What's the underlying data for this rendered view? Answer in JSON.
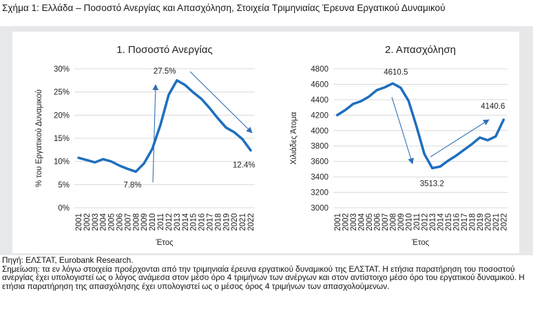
{
  "figure_title": "Σχήμα 1: Ελλάδα – Ποσοστό Ανεργίας και Απασχόληση, Στοιχεία Τριμηνιαίας Έρευνα Εργατικού Δυναμικού",
  "colors": {
    "line": "#1f6fbe",
    "arrow": "#2f6fb5",
    "grid": "#d9d9d9",
    "panel_bg": "#e7e8ea"
  },
  "chart_data": [
    {
      "type": "line",
      "title": "1. Ποσοστό Ανεργίας",
      "xlabel": "Έτος",
      "ylabel": "% του Εργατικού Δυναμικού",
      "x": [
        "2001",
        "2002",
        "2003",
        "2004",
        "2005",
        "2006",
        "2007",
        "2008",
        "2009",
        "2010",
        "2011",
        "2012",
        "2013",
        "2014",
        "2015",
        "2016",
        "2017",
        "2018",
        "2019",
        "2020",
        "2021",
        "2022"
      ],
      "values": [
        10.8,
        10.3,
        9.8,
        10.5,
        10.0,
        9.1,
        8.4,
        7.8,
        9.6,
        12.7,
        17.9,
        24.4,
        27.5,
        26.5,
        24.9,
        23.5,
        21.5,
        19.3,
        17.3,
        16.3,
        14.8,
        12.4
      ],
      "ylim": [
        0,
        30
      ],
      "yticks": [
        0,
        5,
        10,
        15,
        20,
        25,
        30
      ],
      "ytick_labels": [
        "0%",
        "5%",
        "10%",
        "15%",
        "20%",
        "25%",
        "30%"
      ],
      "annotations": [
        {
          "text": "27.5%",
          "index": 12
        },
        {
          "text": "7.8%",
          "index": 7
        },
        {
          "text": "12.4%",
          "index": 21
        }
      ]
    },
    {
      "type": "line",
      "title": "2. Απασχόληση",
      "xlabel": "Έτος",
      "ylabel": "Χιλιάδες Άτομα",
      "x": [
        "2001",
        "2002",
        "2003",
        "2004",
        "2005",
        "2006",
        "2007",
        "2008",
        "2009",
        "2010",
        "2011",
        "2012",
        "2013",
        "2014",
        "2015",
        "2016",
        "2017",
        "2018",
        "2019",
        "2020",
        "2021",
        "2022"
      ],
      "values": [
        4200,
        4265,
        4345,
        4380,
        4440,
        4525,
        4560,
        4610.5,
        4555,
        4385,
        4055,
        3695,
        3513.2,
        3535,
        3610,
        3675,
        3750,
        3825,
        3910,
        3875,
        3925,
        4140.6
      ],
      "ylim": [
        3000,
        4800
      ],
      "yticks": [
        3000,
        3200,
        3400,
        3600,
        3800,
        4000,
        4200,
        4400,
        4600,
        4800
      ],
      "ytick_labels": [
        "3000",
        "3200",
        "3400",
        "3600",
        "3800",
        "4000",
        "4200",
        "4400",
        "4600",
        "4800"
      ],
      "annotations": [
        {
          "text": "4610.5",
          "index": 7
        },
        {
          "text": "3513.2",
          "index": 12
        },
        {
          "text": "4140.6",
          "index": 21
        }
      ]
    }
  ],
  "footer": {
    "source": "Πηγή: ΕΛΣΤΑΤ, Eurobank Research.",
    "note": "Σημείωση: τα εν λόγω στοιχεία προέρχονται από την τριμηνιαία έρευνα εργατικού δυναμικού της ΕΛΣΤΑΤ. Η ετήσια παρατήρηση του ποσοστού ανεργίας έχει υπολογιστεί ως ο λόγος ανάμεσα στον μέσο όρο 4 τριμήνων των ανέργων και στον αντίστοιχο μέσο όρο του εργατικού δυναμικού. Η ετήσια παρατήρηση της απασχόλησης έχει υπολογιστεί ως ο μέσος όρος 4 τριμήνων των απασχολούμενων."
  }
}
